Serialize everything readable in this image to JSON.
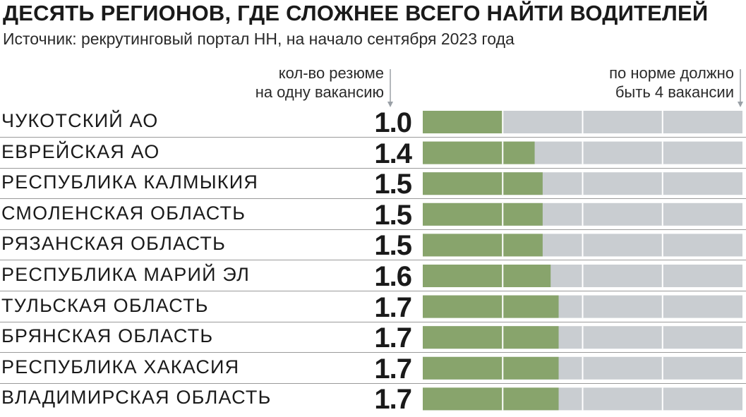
{
  "header": {
    "title": "ДЕСЯТЬ  РЕГИОНОВ, ГДЕ СЛОЖНЕЕ ВСЕГО НАЙТИ ВОДИТЕЛЕЙ",
    "subtitle": "Источник: рекрутинговый портал НН, на начало сентября 2023 года"
  },
  "column_notes": {
    "value_line1": "кол-во резюме",
    "value_line2": "на одну вакансию",
    "norm_line1": "по норме должно",
    "norm_line2": "быть 4 вакансии"
  },
  "colors": {
    "bar_fill": "#88a46c",
    "bar_track": "#c9cdd1",
    "grid_line": "#ffffff",
    "separator": "#9a9a9a",
    "arrow": "#9aa0a6"
  },
  "chart_data": {
    "type": "bar",
    "orientation": "horizontal",
    "categories": [
      "ЧУКОТСКИЙ АО",
      "ЕВРЕЙСКАЯ АО",
      "РЕСПУБЛИКА КАЛМЫКИЯ",
      "СМОЛЕНСКАЯ ОБЛАСТЬ",
      "РЯЗАНСКАЯ ОБЛАСТЬ",
      "РЕСПУБЛИКА МАРИЙ ЭЛ",
      "ТУЛЬСКАЯ ОБЛАСТЬ",
      "БРЯНСКАЯ ОБЛАСТЬ",
      "РЕСПУБЛИКА ХАКАСИЯ",
      "ВЛАДИМИРСКАЯ ОБЛАСТЬ"
    ],
    "values": [
      1.0,
      1.4,
      1.5,
      1.5,
      1.5,
      1.6,
      1.7,
      1.7,
      1.7,
      1.7
    ],
    "value_labels": [
      "1.0",
      "1.4",
      "1.5",
      "1.5",
      "1.5",
      "1.6",
      "1.7",
      "1.7",
      "1.7",
      "1.7"
    ],
    "xlim": [
      0,
      4
    ],
    "grid_at": [
      1,
      2,
      3
    ],
    "title": "ДЕСЯТЬ  РЕГИОНОВ, ГДЕ СЛОЖНЕЕ ВСЕГО НАЙТИ ВОДИТЕЛЕЙ",
    "xlabel": "",
    "ylabel": ""
  }
}
